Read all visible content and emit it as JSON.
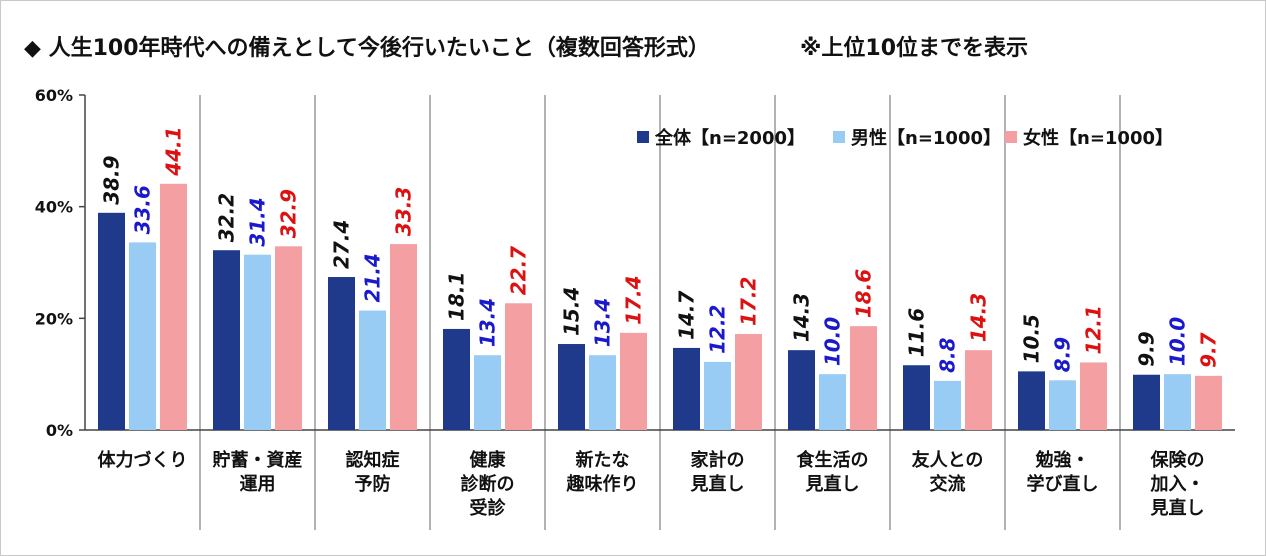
{
  "title": "◆ 人生100年時代への備えとして今後行いたいこと（複数回答形式）",
  "note": "※上位10位までを表示",
  "colors": {
    "all": "#1f3a8a",
    "male": "#99ccf5",
    "female": "#f4a0a3",
    "label_all": "#111111",
    "label_male": "#1a1acc",
    "label_female": "#dd1111"
  },
  "chart_data": {
    "type": "bar",
    "categories": [
      [
        "体力づくり"
      ],
      [
        "貯蓄・資産",
        "運用"
      ],
      [
        "認知症",
        "予防"
      ],
      [
        "健康",
        "診断の",
        "受診"
      ],
      [
        "新たな",
        "趣味作り"
      ],
      [
        "家計の",
        "見直し"
      ],
      [
        "食生活の",
        "見直し"
      ],
      [
        "友人との",
        "交流"
      ],
      [
        "勉強・",
        "学び直し"
      ],
      [
        "保険の",
        "加入・",
        "見直し"
      ]
    ],
    "series": [
      {
        "name": "全体【n=2000】",
        "values": [
          38.9,
          32.2,
          27.4,
          18.1,
          15.4,
          14.7,
          14.3,
          11.6,
          10.5,
          9.9
        ]
      },
      {
        "name": "男性【n=1000】",
        "values": [
          33.6,
          31.4,
          21.4,
          13.4,
          13.4,
          12.2,
          10.0,
          8.8,
          8.9,
          10.0
        ]
      },
      {
        "name": "女性【n=1000】",
        "values": [
          44.1,
          32.9,
          33.3,
          22.7,
          17.4,
          17.2,
          18.6,
          14.3,
          12.1,
          9.7
        ]
      }
    ],
    "yticks": [
      "0%",
      "20%",
      "40%",
      "60%"
    ],
    "ylim": [
      0,
      60
    ],
    "legend_position": "top-right",
    "grid": false
  }
}
